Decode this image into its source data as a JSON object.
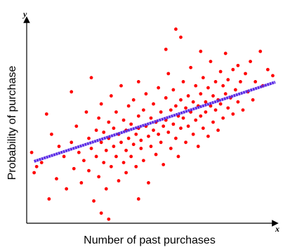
{
  "chart_data": {
    "type": "scatter",
    "x_label": "Number of past purchases",
    "y_label": "Probability of purchase",
    "x_axis_letter": "x",
    "y_axis_letter": "y",
    "xlim": [
      0,
      100
    ],
    "ylim": [
      0,
      100
    ],
    "series": [
      {
        "color": "#ff0000",
        "x": [
          2,
          4,
          6,
          9,
          10,
          12,
          13,
          15,
          16,
          18,
          19,
          20,
          21,
          22,
          23,
          24,
          25,
          25,
          26,
          27,
          28,
          28,
          29,
          29,
          30,
          30,
          31,
          31,
          32,
          32,
          33,
          33,
          34,
          34,
          35,
          35,
          36,
          36,
          37,
          37,
          38,
          38,
          39,
          39,
          40,
          40,
          40,
          41,
          41,
          42,
          42,
          43,
          43,
          44,
          44,
          45,
          45,
          45,
          46,
          46,
          47,
          47,
          48,
          48,
          49,
          49,
          50,
          50,
          51,
          51,
          52,
          52,
          53,
          53,
          54,
          54,
          55,
          55,
          56,
          56,
          57,
          57,
          58,
          58,
          59,
          59,
          60,
          60,
          61,
          61,
          62,
          62,
          63,
          63,
          64,
          64,
          65,
          65,
          66,
          66,
          67,
          67,
          68,
          68,
          69,
          69,
          70,
          70,
          71,
          71,
          72,
          72,
          73,
          73,
          74,
          74,
          75,
          75,
          76,
          76,
          77,
          77,
          78,
          78,
          79,
          79,
          80,
          80,
          81,
          81,
          82,
          83,
          83,
          84,
          85,
          85,
          86,
          87,
          88,
          89,
          90,
          91,
          92,
          94,
          95,
          97,
          99,
          30,
          33,
          45,
          60,
          62,
          56,
          70,
          18,
          26,
          8,
          3
        ],
        "values": [
          35,
          28,
          30,
          12,
          44,
          22,
          38,
          33,
          17,
          40,
          27,
          48,
          35,
          20,
          31,
          55,
          42,
          26,
          37,
          11,
          46,
          33,
          52,
          23,
          40,
          59,
          30,
          45,
          36,
          17,
          50,
          42,
          28,
          63,
          38,
          47,
          33,
          55,
          21,
          44,
          40,
          68,
          30,
          51,
          46,
          36,
          25,
          58,
          42,
          49,
          33,
          61,
          39,
          44,
          28,
          53,
          47,
          70,
          37,
          41,
          56,
          31,
          48,
          64,
          43,
          20,
          52,
          38,
          46,
          59,
          34,
          50,
          67,
          44,
          55,
          40,
          48,
          29,
          62,
          51,
          45,
          74,
          37,
          56,
          49,
          66,
          42,
          58,
          53,
          33,
          61,
          47,
          70,
          52,
          40,
          57,
          63,
          48,
          55,
          77,
          44,
          60,
          51,
          68,
          58,
          38,
          64,
          53,
          47,
          72,
          60,
          55,
          67,
          43,
          58,
          80,
          63,
          50,
          70,
          56,
          61,
          46,
          75,
          59,
          52,
          68,
          64,
          84,
          57,
          71,
          62,
          76,
          54,
          66,
          60,
          78,
          70,
          56,
          74,
          65,
          80,
          61,
          70,
          85,
          68,
          76,
          73,
          5,
          2,
          12,
          96,
          92,
          86,
          85,
          65,
          72,
          54,
          25
        ]
      },
      {
        "type": "line",
        "color": "#5a2be6",
        "x": [
          3,
          100
        ],
        "values": [
          30.6,
          69.8
        ]
      }
    ]
  }
}
